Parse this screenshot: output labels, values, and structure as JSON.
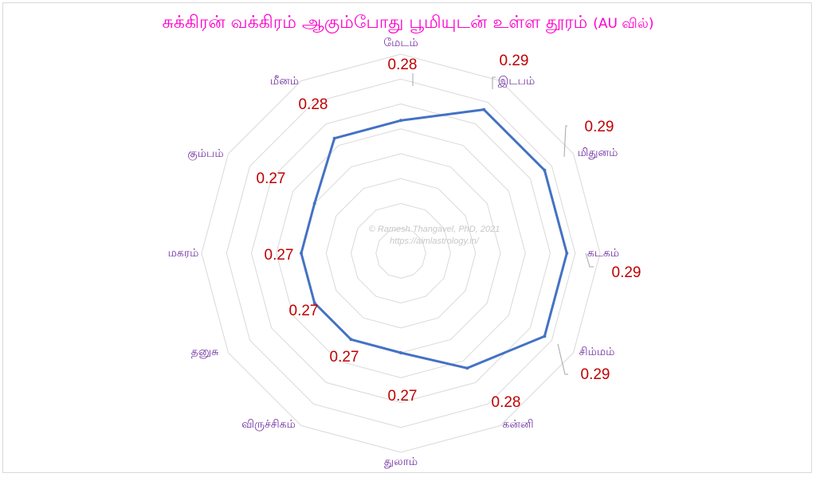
{
  "chart_data": {
    "type": "radar",
    "title": "சுக்கிரன் வக்கிரம் ஆகும்போது பூமியுடன் உள்ள தூரம்",
    "title_unit": "(AU வில்)",
    "categories": [
      "மேடம்",
      "இடபம்",
      "மிதுனம்",
      "கடகம்",
      "சிம்மம்",
      "கன்னி",
      "துலாம்",
      "விருச்சிகம்",
      "தனுசு",
      "மகரம்",
      "கும்பம்",
      "மீனம்"
    ],
    "series": [
      {
        "values": [
          0.28,
          0.29,
          0.29,
          0.29,
          0.29,
          0.28,
          0.27,
          0.27,
          0.27,
          0.27,
          0.27,
          0.28
        ]
      }
    ],
    "value_labels": [
      "0.28",
      "0.29",
      "0.29",
      "0.29",
      "0.29",
      "0.28",
      "0.27",
      "0.27",
      "0.27",
      "0.27",
      "0.27",
      "0.28"
    ],
    "grid": true,
    "colors": {
      "title": "#ff00cc",
      "line": "#4472c4",
      "category_label": "#7030a0",
      "value_label": "#c00000",
      "grid": "#d9d9d9"
    }
  },
  "watermark": {
    "line1": "© Ramesh Thangavel, PhD, 2021",
    "line2": "https://aimlastrology.in/"
  }
}
